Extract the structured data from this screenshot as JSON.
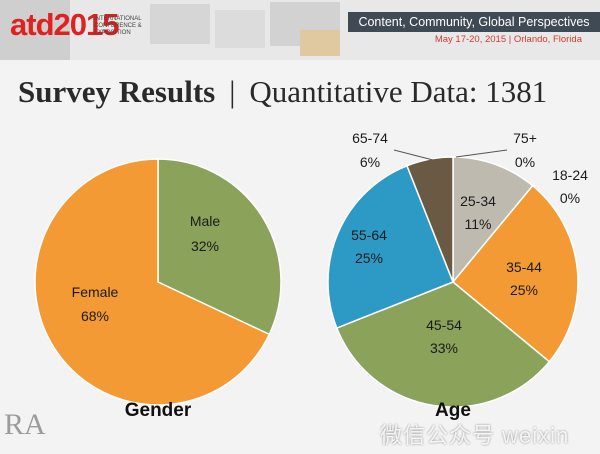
{
  "header": {
    "logo_text": "atd2015",
    "logo_sub": "INTERNATIONAL CONFERENCE & EXPOSITION",
    "tagline": "Content, Community, Global Perspectives",
    "event_info": "May 17-20, 2015 | Orlando, Florida"
  },
  "slide": {
    "title_main": "Survey Results",
    "title_sep": "|",
    "title_rest": "Quantitative Data: 1381"
  },
  "chart_data": [
    {
      "type": "pie",
      "caption": "Gender",
      "slices": [
        {
          "label": "Male",
          "value": 32,
          "text": "32%",
          "color": "#8aa25a"
        },
        {
          "label": "Female",
          "value": 68,
          "text": "68%",
          "color": "#f39a34"
        }
      ]
    },
    {
      "type": "pie",
      "caption": "Age",
      "slices": [
        {
          "label": "75+",
          "value": 0,
          "text": "0%",
          "color": "#6b8bb5"
        },
        {
          "label": "18-24",
          "value": 0,
          "text": "0%",
          "color": "#e07a2a"
        },
        {
          "label": "25-34",
          "value": 11,
          "text": "11%",
          "color": "#bfbab0"
        },
        {
          "label": "35-44",
          "value": 25,
          "text": "25%",
          "color": "#f39a34"
        },
        {
          "label": "45-54",
          "value": 33,
          "text": "33%",
          "color": "#8aa25a"
        },
        {
          "label": "55-64",
          "value": 25,
          "text": "25%",
          "color": "#2c9ac4"
        },
        {
          "label": "65-74",
          "value": 6,
          "text": "6%",
          "color": "#6b5a43"
        }
      ]
    }
  ],
  "watermark": "RA",
  "watermark_site": "微信公众号 weixin"
}
